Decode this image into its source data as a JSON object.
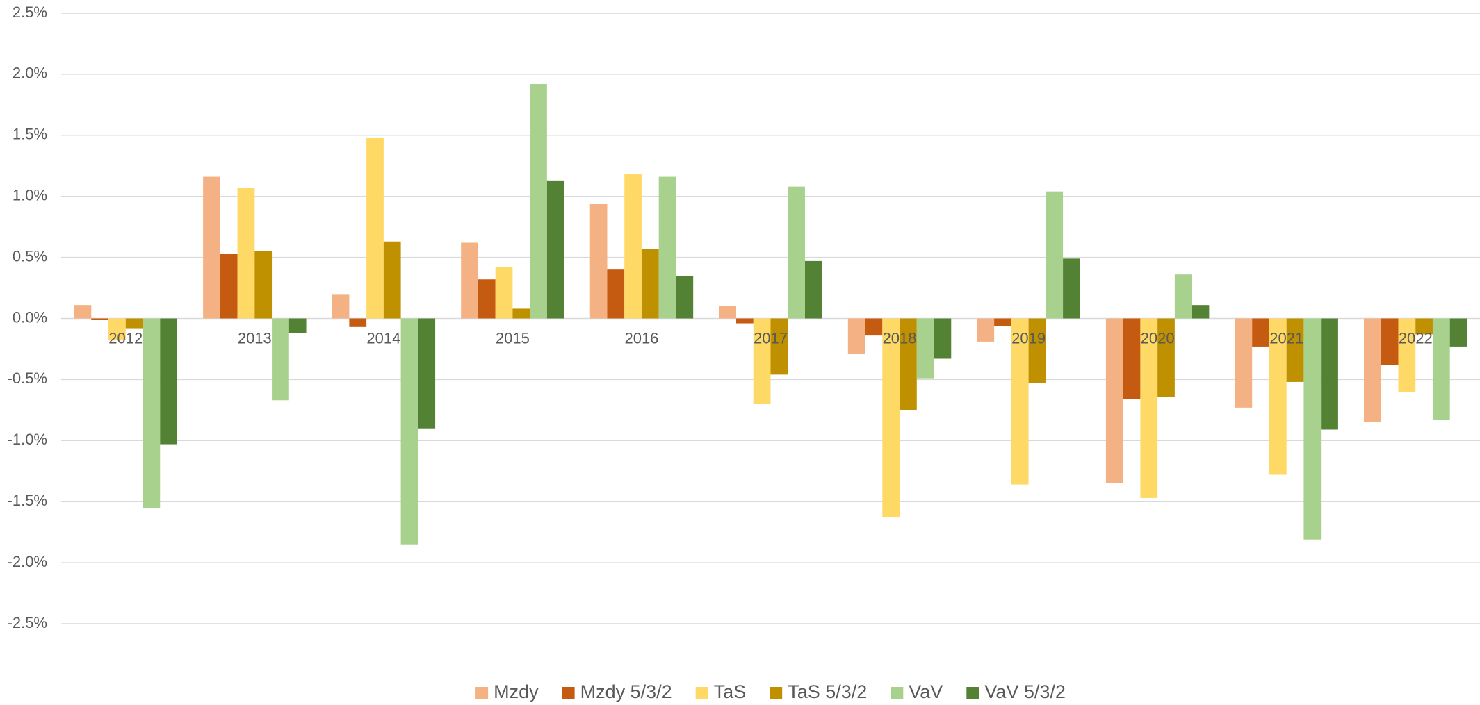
{
  "chart_data": {
    "type": "bar",
    "categories": [
      "2012",
      "2013",
      "2014",
      "2015",
      "2016",
      "2017",
      "2018",
      "2019",
      "2020",
      "2021",
      "2022"
    ],
    "series": [
      {
        "name": "Mzdy",
        "color": "#f4b183",
        "values": [
          0.11,
          1.16,
          0.2,
          0.62,
          0.94,
          0.1,
          -0.29,
          -0.19,
          -1.35,
          -0.73,
          -0.85
        ]
      },
      {
        "name": "Mzdy 5/3/2",
        "color": "#c55a11",
        "values": [
          -0.01,
          0.53,
          -0.07,
          0.32,
          0.4,
          -0.04,
          -0.14,
          -0.06,
          -0.66,
          -0.23,
          -0.38
        ]
      },
      {
        "name": "TaS",
        "color": "#ffd966",
        "values": [
          -0.18,
          1.07,
          1.48,
          0.42,
          1.18,
          -0.7,
          -1.63,
          -1.36,
          -1.47,
          -1.28,
          -0.6
        ]
      },
      {
        "name": "TaS 5/3/2",
        "color": "#bf9000",
        "values": [
          -0.08,
          0.55,
          0.63,
          0.08,
          0.57,
          -0.46,
          -0.75,
          -0.53,
          -0.64,
          -0.52,
          -0.13
        ]
      },
      {
        "name": "VaV",
        "color": "#a9d18e",
        "values": [
          -1.55,
          -0.67,
          -1.85,
          1.92,
          1.16,
          1.08,
          -0.49,
          1.04,
          0.36,
          -1.81,
          -0.83
        ]
      },
      {
        "name": "VaV 5/3/2",
        "color": "#548235",
        "values": [
          -1.03,
          -0.12,
          -0.9,
          1.13,
          0.35,
          0.47,
          -0.33,
          0.49,
          0.11,
          -0.91,
          -0.23
        ]
      }
    ],
    "ylim": [
      -2.5,
      2.5
    ],
    "yticks": [
      {
        "value": -2.5,
        "label": "-2.5%"
      },
      {
        "value": -2.0,
        "label": "-2.0%"
      },
      {
        "value": -1.5,
        "label": "-1.5%"
      },
      {
        "value": -1.0,
        "label": "-1.0%"
      },
      {
        "value": -0.5,
        "label": "-0.5%"
      },
      {
        "value": 0,
        "label": "0.0%"
      },
      {
        "value": 0.5,
        "label": "0.5%"
      },
      {
        "value": 1.0,
        "label": "1.0%"
      },
      {
        "value": 1.5,
        "label": "1.5%"
      },
      {
        "value": 2.0,
        "label": "2.0%"
      },
      {
        "value": 2.5,
        "label": "2.5%"
      }
    ],
    "grid": true,
    "legend": "bottom"
  }
}
